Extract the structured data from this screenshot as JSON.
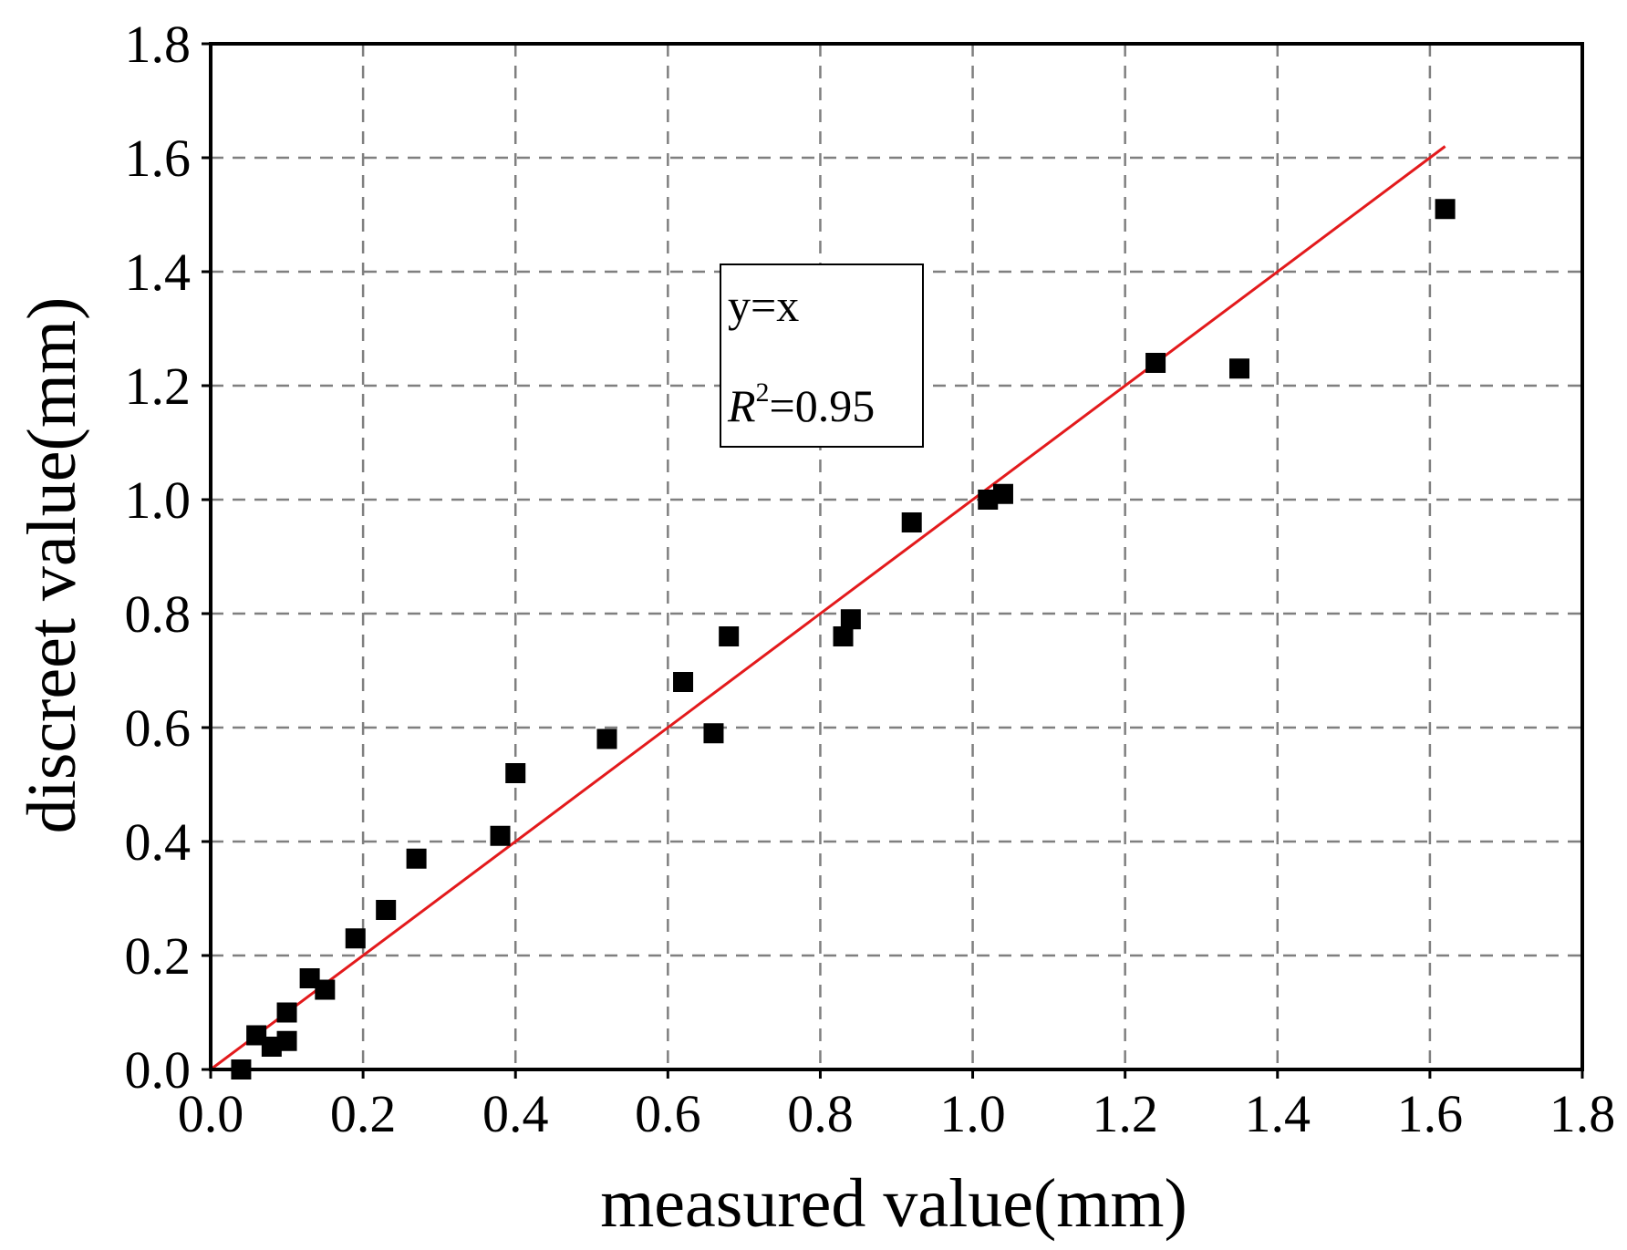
{
  "chart_data": {
    "type": "scatter",
    "xlabel": "measured value(mm)",
    "ylabel": "discreet value(mm)",
    "xlim": [
      0,
      1.8
    ],
    "ylim": [
      0,
      1.8
    ],
    "xticks": [
      "0.0",
      "0.2",
      "0.4",
      "0.6",
      "0.8",
      "1.0",
      "1.2",
      "1.4",
      "1.6",
      "1.8"
    ],
    "yticks": [
      "0.0",
      "0.2",
      "0.4",
      "0.6",
      "0.8",
      "1.0",
      "1.2",
      "1.4",
      "1.6",
      "1.8"
    ],
    "grid": true,
    "points": [
      {
        "x": 0.04,
        "y": 0.0
      },
      {
        "x": 0.06,
        "y": 0.06
      },
      {
        "x": 0.08,
        "y": 0.04
      },
      {
        "x": 0.1,
        "y": 0.05
      },
      {
        "x": 0.1,
        "y": 0.1
      },
      {
        "x": 0.13,
        "y": 0.16
      },
      {
        "x": 0.15,
        "y": 0.14
      },
      {
        "x": 0.19,
        "y": 0.23
      },
      {
        "x": 0.23,
        "y": 0.28
      },
      {
        "x": 0.27,
        "y": 0.37
      },
      {
        "x": 0.38,
        "y": 0.41
      },
      {
        "x": 0.4,
        "y": 0.52
      },
      {
        "x": 0.52,
        "y": 0.58
      },
      {
        "x": 0.62,
        "y": 0.68
      },
      {
        "x": 0.66,
        "y": 0.59
      },
      {
        "x": 0.68,
        "y": 0.76
      },
      {
        "x": 0.83,
        "y": 0.76
      },
      {
        "x": 0.84,
        "y": 0.79
      },
      {
        "x": 0.92,
        "y": 0.96
      },
      {
        "x": 1.02,
        "y": 1.0
      },
      {
        "x": 1.04,
        "y": 1.01
      },
      {
        "x": 1.24,
        "y": 1.24
      },
      {
        "x": 1.35,
        "y": 1.23
      },
      {
        "x": 1.62,
        "y": 1.51
      }
    ],
    "fit_line": {
      "x": [
        0.0,
        1.62
      ],
      "y": [
        0.0,
        1.62
      ],
      "color": "#e31a1c"
    },
    "marker_color": "#000000",
    "annotation": {
      "equation": "y=x",
      "r2_label": "R",
      "r2_superscript": "2",
      "r2_value": "=0.95"
    }
  }
}
